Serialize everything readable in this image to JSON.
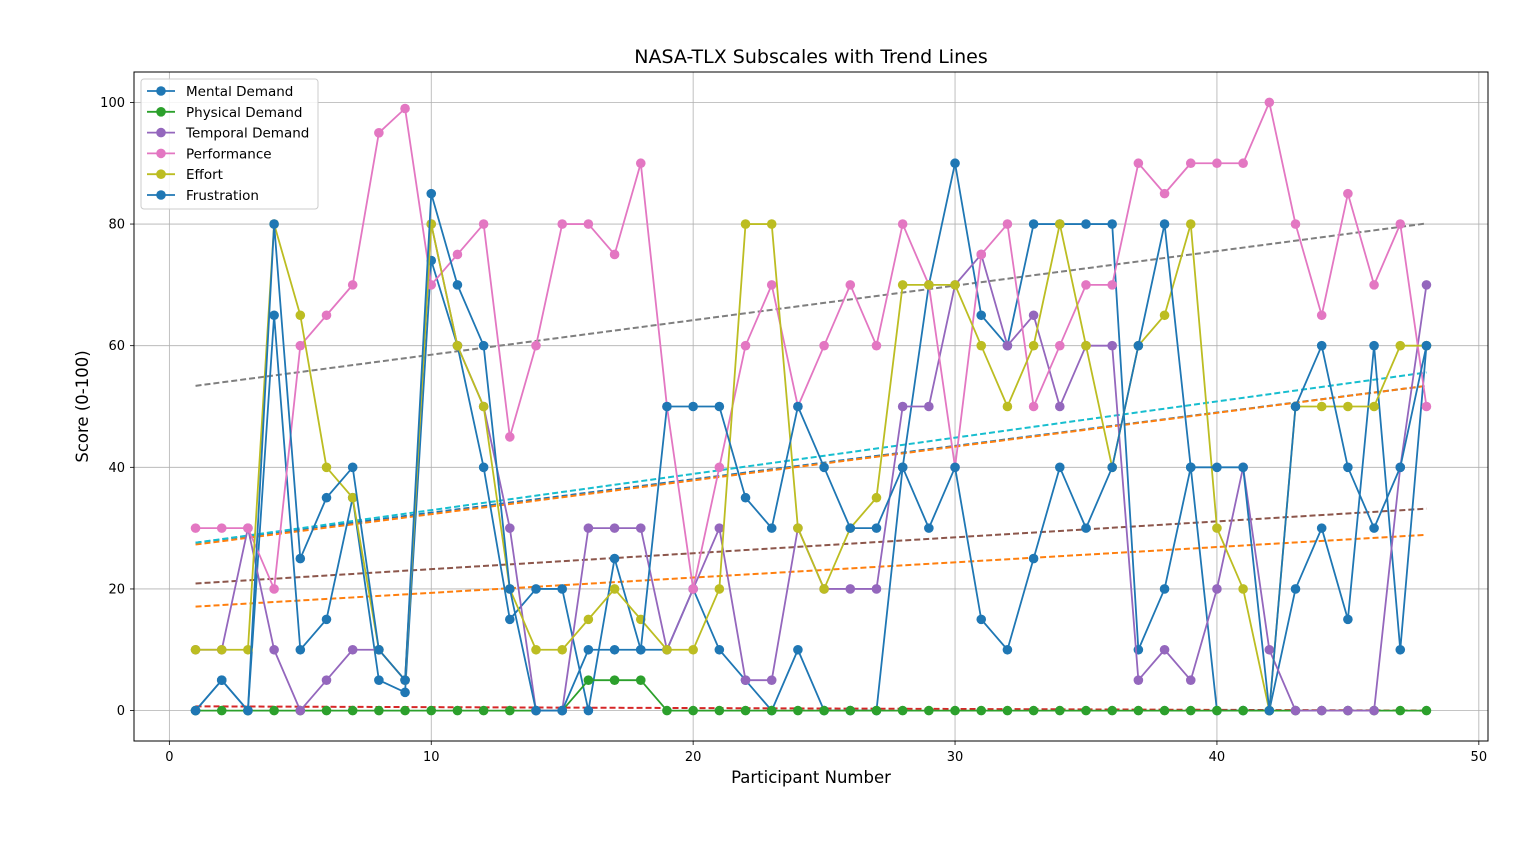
{
  "chart_data": {
    "type": "line",
    "title": "NASA-TLX Subscales with Trend Lines",
    "xlabel": "Participant Number",
    "ylabel": "Score (0-100)",
    "xlim": [
      -1.35,
      50.35
    ],
    "ylim": [
      -5,
      105
    ],
    "xticks": [
      0,
      10,
      20,
      30,
      40,
      50
    ],
    "yticks": [
      0,
      20,
      40,
      60,
      80,
      100
    ],
    "grid": true,
    "legend_position": "top-left",
    "x": [
      1,
      2,
      3,
      4,
      5,
      6,
      7,
      8,
      9,
      10,
      11,
      12,
      13,
      14,
      15,
      16,
      17,
      18,
      19,
      20,
      21,
      22,
      23,
      24,
      25,
      26,
      27,
      28,
      29,
      30,
      31,
      32,
      33,
      34,
      35,
      36,
      37,
      38,
      39,
      40,
      41,
      42,
      43,
      44,
      45,
      46,
      47,
      48
    ],
    "series": [
      {
        "name": "Mental Demand",
        "color": "#1f77b4",
        "values": [
          0,
          5,
          0,
          65,
          10,
          15,
          35,
          5,
          3,
          74,
          60,
          40,
          15,
          20,
          20,
          0,
          25,
          10,
          10,
          20,
          10,
          5,
          0,
          10,
          0,
          0,
          0,
          40,
          70,
          90,
          65,
          60,
          80,
          80,
          80,
          80,
          10,
          20,
          40,
          0,
          0,
          0,
          20,
          30,
          15,
          60,
          10,
          60
        ]
      },
      {
        "name": "Physical Demand",
        "color": "#2ca02c",
        "values": [
          0,
          0,
          0,
          0,
          0,
          0,
          0,
          0,
          0,
          0,
          0,
          0,
          0,
          0,
          0,
          5,
          5,
          5,
          0,
          0,
          0,
          0,
          0,
          0,
          0,
          0,
          0,
          0,
          0,
          0,
          0,
          0,
          0,
          0,
          0,
          0,
          0,
          0,
          0,
          0,
          0,
          0,
          0,
          0,
          0,
          0,
          0,
          0
        ]
      },
      {
        "name": "Temporal Demand",
        "color": "#9467bd",
        "values": [
          10,
          10,
          30,
          10,
          0,
          5,
          10,
          10,
          5,
          80,
          60,
          50,
          30,
          0,
          0,
          30,
          30,
          30,
          10,
          20,
          30,
          5,
          5,
          30,
          20,
          20,
          20,
          50,
          50,
          70,
          75,
          60,
          65,
          50,
          60,
          60,
          5,
          10,
          5,
          20,
          40,
          10,
          0,
          0,
          0,
          0,
          40,
          70
        ]
      },
      {
        "name": "Performance",
        "color": "#e377c2",
        "values": [
          30,
          30,
          30,
          20,
          60,
          65,
          70,
          95,
          99,
          70,
          75,
          80,
          45,
          60,
          80,
          80,
          75,
          90,
          50,
          20,
          40,
          60,
          70,
          50,
          60,
          70,
          60,
          80,
          70,
          40,
          75,
          80,
          50,
          60,
          70,
          70,
          90,
          85,
          90,
          90,
          90,
          100,
          80,
          65,
          85,
          70,
          80,
          50
        ]
      },
      {
        "name": "Effort",
        "color": "#bcbd22",
        "values": [
          10,
          10,
          10,
          80,
          65,
          40,
          35,
          10,
          5,
          80,
          60,
          50,
          20,
          10,
          10,
          15,
          20,
          15,
          10,
          10,
          20,
          80,
          80,
          30,
          20,
          30,
          35,
          70,
          70,
          70,
          60,
          50,
          60,
          80,
          60,
          40,
          60,
          65,
          80,
          30,
          20,
          0,
          50,
          50,
          50,
          50,
          60,
          60
        ]
      },
      {
        "name": "Frustration",
        "color": "#1f77b4",
        "values": [
          0,
          5,
          0,
          80,
          25,
          35,
          40,
          10,
          5,
          85,
          70,
          60,
          20,
          0,
          0,
          10,
          10,
          10,
          50,
          50,
          50,
          35,
          30,
          50,
          40,
          30,
          30,
          40,
          30,
          40,
          15,
          10,
          25,
          40,
          30,
          40,
          60,
          80,
          40,
          40,
          40,
          0,
          50,
          60,
          40,
          30,
          40,
          60
        ]
      }
    ],
    "trend_lines": [
      {
        "color": "#1f77b4",
        "x": [
          1,
          48
        ],
        "y": [
          27.6,
          53.4
        ]
      },
      {
        "color": "#ff7f0e",
        "x": [
          1,
          48
        ],
        "y": [
          17.1,
          28.9
        ]
      },
      {
        "color": "#d62728",
        "x": [
          1,
          48
        ],
        "y": [
          0.7,
          0.0
        ]
      },
      {
        "color": "#8c564b",
        "x": [
          1,
          48
        ],
        "y": [
          20.9,
          33.2
        ]
      },
      {
        "color": "#7f7f7f",
        "x": [
          1,
          48
        ],
        "y": [
          53.4,
          80.1
        ]
      },
      {
        "color": "#ff7f0e",
        "x": [
          1,
          48
        ],
        "y": [
          27.3,
          53.4
        ]
      },
      {
        "color": "#17becf",
        "x": [
          1,
          48
        ],
        "y": [
          27.6,
          55.6
        ]
      }
    ]
  }
}
